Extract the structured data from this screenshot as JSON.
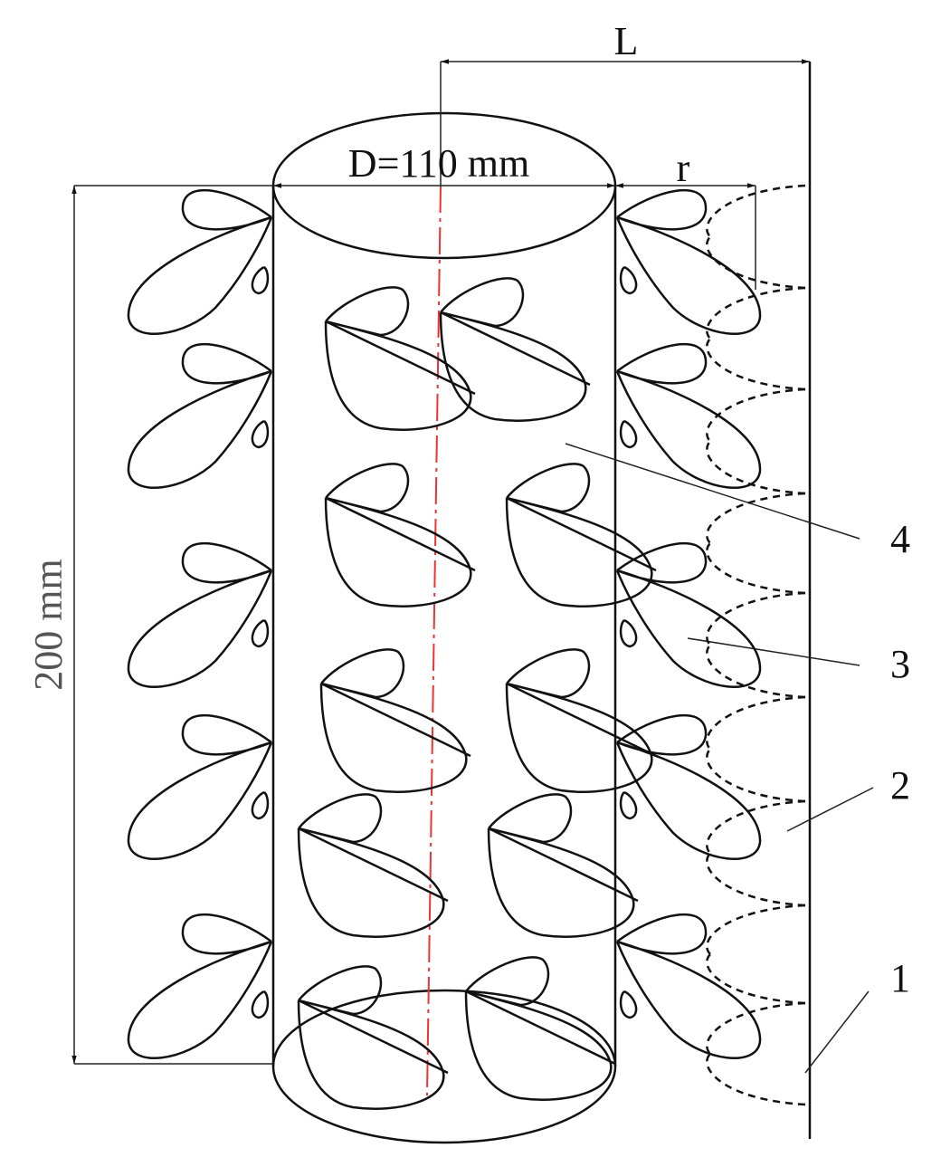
{
  "dimensions": {
    "length": "L",
    "diameter": "D=110 mm",
    "radius": "r",
    "height": "200 mm"
  },
  "callouts": [
    "4",
    "3",
    "2",
    "1"
  ]
}
